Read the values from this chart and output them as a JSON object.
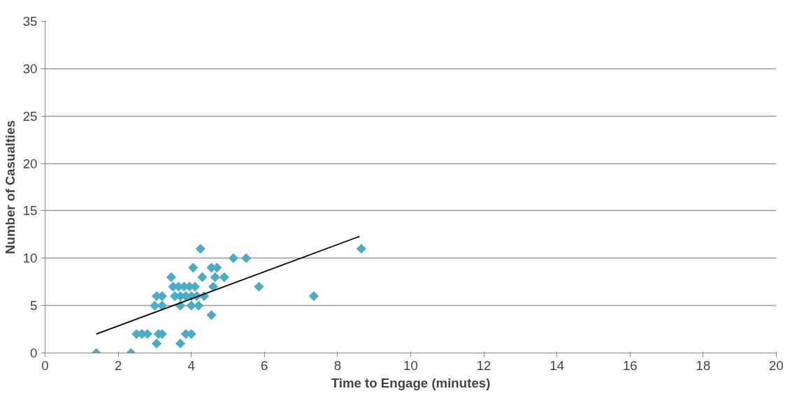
{
  "chart_data": {
    "type": "scatter",
    "xlabel": "Time to Engage (minutes)",
    "ylabel": "Number of Casualties",
    "xlim": [
      0,
      20
    ],
    "xticks": [
      0,
      2,
      4,
      6,
      8,
      10,
      12,
      14,
      16,
      18,
      20
    ],
    "ylim": [
      0,
      35
    ],
    "yticks": [
      0,
      5,
      10,
      15,
      20,
      25,
      30,
      35
    ],
    "grid": "y",
    "marker": "diamond",
    "series": [
      {
        "color": "#4bacc6",
        "x": [
          1.4,
          2.35,
          2.5,
          2.65,
          2.8,
          3.1,
          3.2,
          3.05,
          3.0,
          3.2,
          3.2,
          3.05,
          3.45,
          3.5,
          3.55,
          3.65,
          3.7,
          3.7,
          3.8,
          3.85,
          3.95,
          4.0,
          4.0,
          4.1,
          4.15,
          4.2,
          3.7,
          3.85,
          4.0,
          4.05,
          4.25,
          4.3,
          4.35,
          4.55,
          4.55,
          4.6,
          4.65,
          4.7,
          4.9,
          5.15,
          5.5,
          5.85,
          7.35,
          8.65
        ],
        "values": [
          0,
          0,
          2,
          2,
          2,
          2,
          2,
          1,
          5,
          6,
          5,
          6,
          8,
          7,
          6,
          7,
          6,
          5,
          7,
          6,
          7,
          6,
          5,
          7,
          6,
          5,
          1,
          2,
          2,
          9,
          11,
          8,
          6,
          9,
          4,
          7,
          8,
          9,
          8,
          10,
          10,
          7,
          6,
          11
        ]
      },
      {
        "type": "line",
        "color": "#000000",
        "line_style": "solid",
        "marker": "none",
        "x": [
          1.4,
          8.6
        ],
        "values": [
          2,
          12.3
        ]
      }
    ]
  }
}
